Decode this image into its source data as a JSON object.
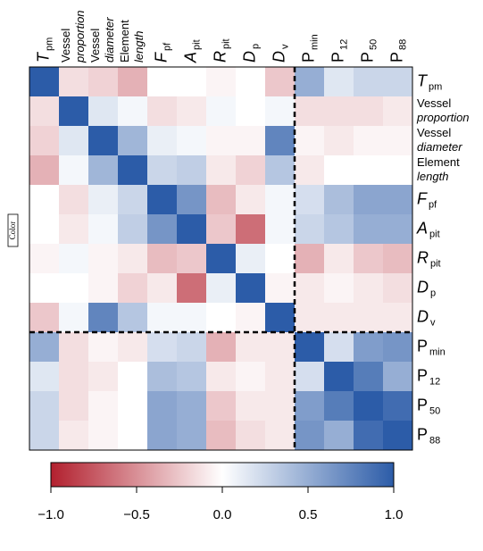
{
  "chart_data": {
    "type": "heatmap",
    "variables": [
      {
        "text": "T",
        "sub": "pm",
        "italic": true
      },
      {
        "text": "Vessel",
        "text2": "proportion"
      },
      {
        "text": "Vessel",
        "text2": "diameter"
      },
      {
        "text": "Element",
        "text2": "length"
      },
      {
        "text": "F",
        "sub": "pf",
        "italic": true
      },
      {
        "text": "A",
        "sub": "pit",
        "italic": true
      },
      {
        "text": "R",
        "sub": "pit",
        "italic": true
      },
      {
        "text": "D",
        "sub": "p",
        "italic": true
      },
      {
        "text": "D",
        "sub": "v",
        "italic": true
      },
      {
        "text": "P",
        "sub": "min"
      },
      {
        "text": "P",
        "sub": "12"
      },
      {
        "text": "P",
        "sub": "50"
      },
      {
        "text": "P",
        "sub": "88"
      }
    ],
    "matrix": [
      [
        1,
        -0.15,
        -0.2,
        -0.35,
        0,
        0,
        -0.05,
        0,
        -0.25,
        0.5,
        0.15,
        0.25,
        0.25
      ],
      [
        -0.15,
        1,
        0.15,
        0.05,
        -0.15,
        -0.1,
        0.05,
        0,
        0.05,
        -0.15,
        -0.15,
        -0.15,
        -0.1
      ],
      [
        -0.2,
        0.15,
        1,
        0.45,
        0.1,
        0.05,
        -0.05,
        -0.05,
        0.75,
        -0.05,
        -0.1,
        -0.05,
        -0.05
      ],
      [
        -0.35,
        0.05,
        0.45,
        1,
        0.25,
        0.3,
        -0.1,
        -0.2,
        0.35,
        -0.1,
        0,
        0,
        0
      ],
      [
        0,
        -0.15,
        0.1,
        0.25,
        1,
        0.65,
        -0.3,
        -0.1,
        0.05,
        0.2,
        0.4,
        0.55,
        0.55
      ],
      [
        0,
        -0.1,
        0.05,
        0.3,
        0.65,
        1,
        -0.25,
        -0.65,
        0.05,
        0.25,
        0.35,
        0.5,
        0.5
      ],
      [
        -0.05,
        0.05,
        -0.05,
        -0.1,
        -0.3,
        -0.25,
        1,
        0.1,
        0,
        -0.35,
        -0.1,
        -0.25,
        -0.3
      ],
      [
        0,
        0,
        -0.05,
        -0.2,
        -0.1,
        -0.65,
        0.1,
        1,
        -0.05,
        -0.1,
        -0.05,
        -0.1,
        -0.15
      ],
      [
        -0.25,
        0.05,
        0.75,
        0.35,
        0.05,
        0.05,
        0,
        -0.05,
        1,
        -0.1,
        -0.1,
        -0.1,
        -0.1
      ],
      [
        0.5,
        -0.15,
        -0.05,
        -0.1,
        0.2,
        0.25,
        -0.35,
        -0.1,
        -0.1,
        1,
        0.2,
        0.6,
        0.65
      ],
      [
        0.15,
        -0.15,
        -0.1,
        0,
        0.4,
        0.35,
        -0.1,
        -0.05,
        -0.1,
        0.2,
        1,
        0.8,
        0.5
      ],
      [
        0.25,
        -0.15,
        -0.05,
        0,
        0.55,
        0.5,
        -0.25,
        -0.1,
        -0.1,
        0.6,
        0.8,
        1,
        0.9
      ],
      [
        0.25,
        -0.1,
        -0.05,
        0,
        0.55,
        0.5,
        -0.3,
        -0.15,
        -0.1,
        0.65,
        0.5,
        0.9,
        1
      ]
    ],
    "divider_after": 9,
    "legend_title": "Color",
    "colors": {
      "low": "#b2202e",
      "mid": "#ffffff",
      "high": "#2c5ca8"
    },
    "clim": [
      -1,
      1
    ],
    "cticks": [
      {
        "value": -1,
        "label": "−1.0"
      },
      {
        "value": -0.5,
        "label": "−0.5"
      },
      {
        "value": 0,
        "label": "0.0"
      },
      0.5,
      {
        "value": 1,
        "label": "1.0"
      }
    ]
  }
}
